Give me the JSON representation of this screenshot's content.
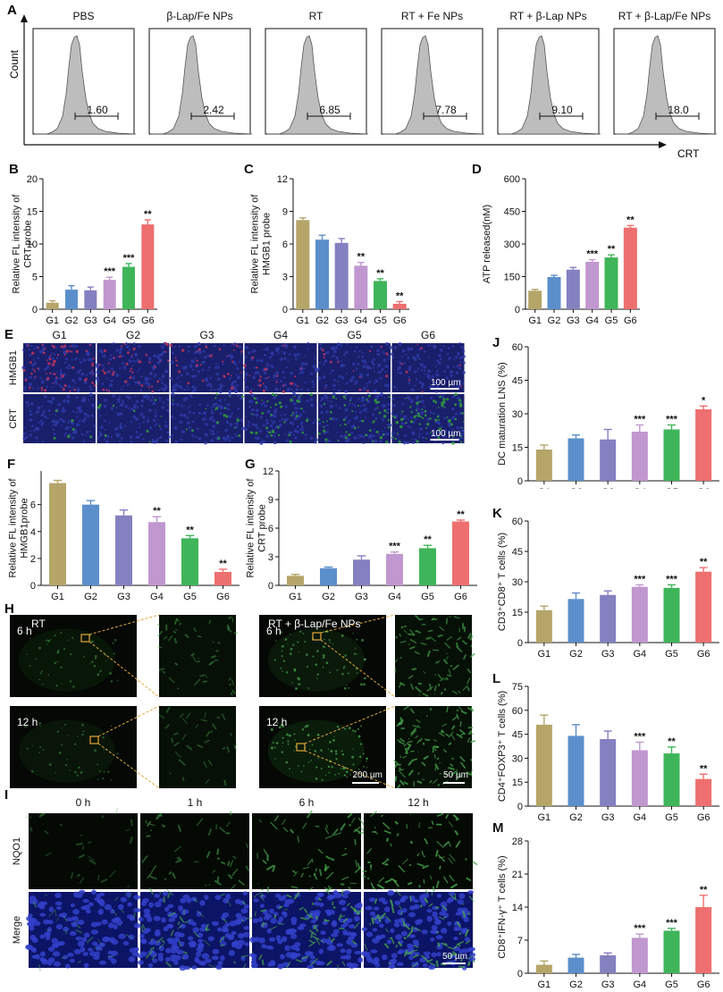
{
  "panel_letters": {
    "A": "A",
    "B": "B",
    "C": "C",
    "D": "D",
    "E": "E",
    "F": "F",
    "G": "G",
    "H": "H",
    "I": "I",
    "J": "J",
    "K": "K",
    "L": "L",
    "M": "M"
  },
  "colors": {
    "G1": "#b5a569",
    "G2": "#5b8fcb",
    "G3": "#8580c0",
    "G4": "#c197cf",
    "G5": "#3fb55a",
    "G6": "#ee6f6f",
    "hist": "#bdbdbd",
    "hmgb1": "#b8325a",
    "crt": "#2f9a3a",
    "dapi": "#2e3aa8",
    "nqo1": "#47a54c"
  },
  "panelA": {
    "count_label": "Count",
    "crt_label": "CRT",
    "histograms": [
      {
        "title": "PBS",
        "value": "1.60"
      },
      {
        "title": "β-Lap/Fe NPs",
        "value": "2.42"
      },
      {
        "title": "RT",
        "value": "6.85"
      },
      {
        "title": "RT + Fe NPs",
        "value": "7.78"
      },
      {
        "title": "RT + β-Lap NPs",
        "value": "9.10"
      },
      {
        "title": "RT + β-Lap/Fe NPs",
        "value": "18.0"
      }
    ]
  },
  "chart_data": [
    {
      "id": "B",
      "type": "bar",
      "categories": [
        "G1",
        "G2",
        "G3",
        "G4",
        "G5",
        "G6"
      ],
      "values": [
        1.0,
        3.0,
        2.9,
        4.5,
        6.5,
        13.0
      ],
      "errors": [
        0.3,
        0.6,
        0.5,
        0.4,
        0.5,
        0.7
      ],
      "sig": [
        "",
        "",
        "",
        "***",
        "***",
        "**"
      ],
      "ylabel": [
        "Relative FL intensity of",
        "CRT probe"
      ],
      "ylim": [
        0,
        20
      ],
      "yticks": [
        0,
        5,
        10,
        15,
        20
      ]
    },
    {
      "id": "C",
      "type": "bar",
      "categories": [
        "G1",
        "G2",
        "G3",
        "G4",
        "G5",
        "G6"
      ],
      "values": [
        8.2,
        6.4,
        6.1,
        4.0,
        2.6,
        0.5
      ],
      "errors": [
        0.2,
        0.4,
        0.4,
        0.3,
        0.2,
        0.2
      ],
      "sig": [
        "",
        "",
        "",
        "**",
        "**",
        "**"
      ],
      "ylabel": [
        "Relative FL intensity of",
        "HMGB1 probe"
      ],
      "ylim": [
        0,
        12
      ],
      "yticks": [
        0,
        3,
        6,
        9,
        12
      ]
    },
    {
      "id": "D",
      "type": "bar",
      "categories": [
        "G1",
        "G2",
        "G3",
        "G4",
        "G5",
        "G6"
      ],
      "values": [
        85,
        148,
        182,
        218,
        238,
        375
      ],
      "errors": [
        6,
        8,
        10,
        10,
        12,
        10
      ],
      "sig": [
        "",
        "",
        "",
        "***",
        "**",
        "**"
      ],
      "ylabel": [
        "ATP released(nM)"
      ],
      "ylim": [
        0,
        600
      ],
      "yticks": [
        0,
        150,
        300,
        450,
        600
      ]
    },
    {
      "id": "F",
      "type": "bar",
      "categories": [
        "G1",
        "G2",
        "G3",
        "G4",
        "G5",
        "G6"
      ],
      "values": [
        7.6,
        6.0,
        5.2,
        4.7,
        3.5,
        1.0
      ],
      "errors": [
        0.2,
        0.3,
        0.4,
        0.4,
        0.2,
        0.2
      ],
      "sig": [
        "",
        "",
        "",
        "**",
        "**",
        "**"
      ],
      "ylabel": [
        "Relative FL intensity of",
        "HMGB1probe"
      ],
      "ylim": [
        0,
        8
      ],
      "yticks": [
        0,
        2,
        4,
        6
      ],
      "ymax_draw": 8.5
    },
    {
      "id": "G",
      "type": "bar",
      "categories": [
        "G1",
        "G2",
        "G3",
        "G4",
        "G5",
        "G6"
      ],
      "values": [
        1.0,
        1.8,
        2.7,
        3.3,
        3.9,
        6.7
      ],
      "errors": [
        0.15,
        0.12,
        0.4,
        0.2,
        0.3,
        0.15
      ],
      "sig": [
        "",
        "",
        "",
        "***",
        "**",
        "**"
      ],
      "ylabel": [
        "Relative FL intensity of",
        "CRT probe"
      ],
      "ylim": [
        0,
        12
      ],
      "yticks": [
        0,
        3,
        6,
        9,
        12
      ]
    },
    {
      "id": "J",
      "type": "bar",
      "categories": [
        "G1",
        "G2",
        "G3",
        "G4",
        "G5",
        "G6"
      ],
      "values": [
        14,
        19,
        18.5,
        22,
        23,
        32
      ],
      "errors": [
        2,
        1.5,
        4.5,
        3,
        2,
        1.5
      ],
      "sig": [
        "",
        "",
        "",
        "***",
        "***",
        "*"
      ],
      "ylabel": [
        "DC maturation LNS (%)"
      ],
      "ylim": [
        0,
        60
      ],
      "yticks": [
        0,
        15,
        30,
        45,
        60
      ]
    },
    {
      "id": "K",
      "type": "bar",
      "categories": [
        "G1",
        "G2",
        "G3",
        "G4",
        "G5",
        "G6"
      ],
      "values": [
        16,
        21.5,
        23.5,
        27.5,
        27,
        35
      ],
      "errors": [
        2,
        3,
        2,
        1,
        1.5,
        2
      ],
      "sig": [
        "",
        "",
        "",
        "***",
        "***",
        "**"
      ],
      "ylabel": [
        "CD3⁺CD8⁺ T cells (%)"
      ],
      "ylim": [
        0,
        60
      ],
      "yticks": [
        0,
        15,
        30,
        45,
        60
      ]
    },
    {
      "id": "L",
      "type": "bar",
      "categories": [
        "G1",
        "G2",
        "G3",
        "G4",
        "G5",
        "G6"
      ],
      "values": [
        51,
        44,
        42,
        35,
        33,
        17
      ],
      "errors": [
        6,
        7,
        5,
        5,
        4,
        3
      ],
      "sig": [
        "",
        "",
        "",
        "***",
        "**",
        "**"
      ],
      "ylabel": [
        "CD4⁺FOXP3⁺ T cells (%)"
      ],
      "ylim": [
        0,
        75
      ],
      "yticks": [
        0,
        15,
        30,
        45,
        60,
        75
      ]
    },
    {
      "id": "M",
      "type": "bar",
      "categories": [
        "G1",
        "G2",
        "G3",
        "G4",
        "G5",
        "G6"
      ],
      "values": [
        1.8,
        3.3,
        3.8,
        7.5,
        9.0,
        14.0
      ],
      "errors": [
        0.8,
        0.7,
        0.5,
        0.8,
        0.5,
        2.5
      ],
      "sig": [
        "",
        "",
        "",
        "***",
        "***",
        "**"
      ],
      "ylabel": [
        "CD8⁺IFN-γ⁺ T cells (%)"
      ],
      "ylim": [
        0,
        28
      ],
      "yticks": [
        0,
        7,
        14,
        21,
        28
      ]
    }
  ],
  "panelE": {
    "columns": [
      "G1",
      "G2",
      "G3",
      "G4",
      "G5",
      "G6"
    ],
    "rows": [
      "HMGB1",
      "CRT"
    ],
    "scalebar": "100 µm"
  },
  "panelH": {
    "left_title": "RT",
    "right_title": "RT + β-Lap/Fe NPs",
    "rows": [
      "6 h",
      "12 h"
    ],
    "scalebar_big": "200 µm",
    "scalebar_small": "50 µm"
  },
  "panelI": {
    "columns": [
      "0 h",
      "1 h",
      "6 h",
      "12 h"
    ],
    "rows": [
      "NQO1",
      "Merge"
    ],
    "scalebar": "50 µm"
  }
}
